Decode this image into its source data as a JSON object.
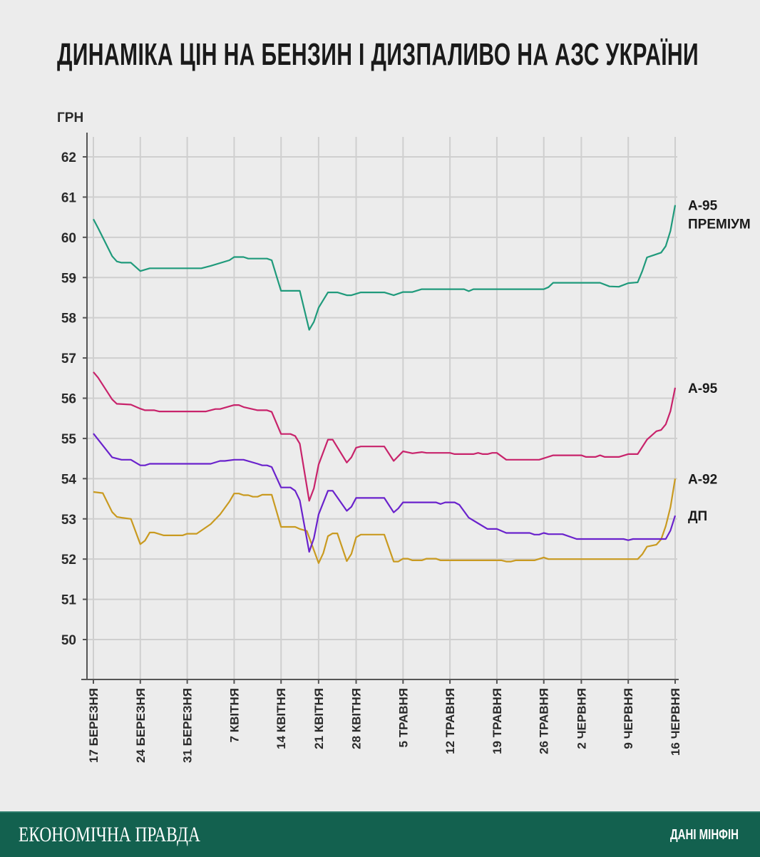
{
  "chart_data": {
    "type": "line",
    "title": "ДИНАМІКА ЦІН НА БЕНЗИН І ДИЗПАЛИВО НА АЗС УКРАЇНИ",
    "ylabel": "ГРН",
    "xlabel": "",
    "ylim": [
      49,
      62.5
    ],
    "yticks": [
      50,
      51,
      52,
      53,
      54,
      55,
      56,
      57,
      58,
      59,
      60,
      61,
      62
    ],
    "xlim": [
      0,
      124
    ],
    "x_unit": "observation index",
    "xticks": [
      {
        "x": 0,
        "label": "17 БЕРЕЗНЯ"
      },
      {
        "x": 10,
        "label": "24 БЕРЕЗНЯ"
      },
      {
        "x": 20,
        "label": "31 БЕРЕЗНЯ"
      },
      {
        "x": 30,
        "label": "7 КВІТНЯ"
      },
      {
        "x": 40,
        "label": "14 КВІТНЯ"
      },
      {
        "x": 48,
        "label": "21 КВІТНЯ"
      },
      {
        "x": 56,
        "label": "28 КВІТНЯ"
      },
      {
        "x": 66,
        "label": "5 ТРАВНЯ"
      },
      {
        "x": 76,
        "label": "12 ТРАВНЯ"
      },
      {
        "x": 86,
        "label": "19 ТРАВНЯ"
      },
      {
        "x": 96,
        "label": "26 ТРАВНЯ"
      },
      {
        "x": 104,
        "label": "2 ЧЕРВНЯ"
      },
      {
        "x": 114,
        "label": "9 ЧЕРВНЯ"
      },
      {
        "x": 124,
        "label": "16 ЧЕРВНЯ"
      }
    ],
    "grid": true,
    "legend": "end-of-line labels, right",
    "series": [
      {
        "name": "А-95 ПРЕМІУМ",
        "label_lines": [
          "А-95",
          "ПРЕМІУМ"
        ],
        "color": "#1f9a7b",
        "points": [
          [
            0,
            60.45
          ],
          [
            1,
            60.23
          ],
          [
            4,
            59.53
          ],
          [
            5,
            59.4
          ],
          [
            6,
            59.37
          ],
          [
            8,
            59.37
          ],
          [
            10,
            59.16
          ],
          [
            12,
            59.23
          ],
          [
            23,
            59.23
          ],
          [
            25,
            59.29
          ],
          [
            29,
            59.43
          ],
          [
            30,
            59.51
          ],
          [
            32,
            59.51
          ],
          [
            33,
            59.47
          ],
          [
            37,
            59.47
          ],
          [
            38,
            59.43
          ],
          [
            39,
            59.05
          ],
          [
            40,
            58.67
          ],
          [
            44,
            58.67
          ],
          [
            46,
            57.7
          ],
          [
            47,
            57.9
          ],
          [
            48,
            58.25
          ],
          [
            50,
            58.63
          ],
          [
            52,
            58.63
          ],
          [
            54,
            58.56
          ],
          [
            55,
            58.56
          ],
          [
            57,
            58.63
          ],
          [
            62,
            58.63
          ],
          [
            64,
            58.56
          ],
          [
            66,
            58.64
          ],
          [
            68,
            58.64
          ],
          [
            70,
            58.71
          ],
          [
            79,
            58.71
          ],
          [
            80,
            58.66
          ],
          [
            81,
            58.71
          ],
          [
            96,
            58.71
          ],
          [
            97,
            58.76
          ],
          [
            98,
            58.87
          ],
          [
            108,
            58.87
          ],
          [
            110,
            58.78
          ],
          [
            112,
            58.77
          ],
          [
            114,
            58.86
          ],
          [
            116,
            58.88
          ],
          [
            117,
            59.16
          ],
          [
            118,
            59.5
          ],
          [
            119.5,
            59.56
          ],
          [
            121,
            59.62
          ],
          [
            122,
            59.78
          ],
          [
            123,
            60.16
          ],
          [
            124,
            60.8
          ]
        ]
      },
      {
        "name": "А-95",
        "label_lines": [
          "А-95"
        ],
        "color": "#c8236b",
        "points": [
          [
            0,
            56.65
          ],
          [
            1,
            56.51
          ],
          [
            4,
            55.97
          ],
          [
            5,
            55.86
          ],
          [
            8,
            55.84
          ],
          [
            10,
            55.74
          ],
          [
            11,
            55.7
          ],
          [
            13,
            55.7
          ],
          [
            14,
            55.67
          ],
          [
            24,
            55.67
          ],
          [
            26,
            55.73
          ],
          [
            27,
            55.73
          ],
          [
            30,
            55.83
          ],
          [
            31,
            55.83
          ],
          [
            32,
            55.78
          ],
          [
            35,
            55.7
          ],
          [
            37,
            55.7
          ],
          [
            38,
            55.66
          ],
          [
            40,
            55.11
          ],
          [
            42,
            55.11
          ],
          [
            43,
            55.06
          ],
          [
            44,
            54.87
          ],
          [
            46,
            53.45
          ],
          [
            47,
            53.76
          ],
          [
            48,
            54.35
          ],
          [
            50,
            54.97
          ],
          [
            51,
            54.97
          ],
          [
            54,
            54.4
          ],
          [
            55,
            54.53
          ],
          [
            56,
            54.77
          ],
          [
            57,
            54.8
          ],
          [
            62,
            54.8
          ],
          [
            64,
            54.44
          ],
          [
            66,
            54.68
          ],
          [
            68,
            54.63
          ],
          [
            70,
            54.66
          ],
          [
            71,
            54.64
          ],
          [
            76,
            54.64
          ],
          [
            77,
            54.61
          ],
          [
            81,
            54.61
          ],
          [
            82,
            54.64
          ],
          [
            83,
            54.61
          ],
          [
            84,
            54.61
          ],
          [
            85,
            54.64
          ],
          [
            86,
            54.64
          ],
          [
            88,
            54.47
          ],
          [
            95,
            54.47
          ],
          [
            98,
            54.58
          ],
          [
            104,
            54.58
          ],
          [
            105,
            54.54
          ],
          [
            107,
            54.54
          ],
          [
            108,
            54.58
          ],
          [
            109,
            54.54
          ],
          [
            112,
            54.54
          ],
          [
            114,
            54.61
          ],
          [
            116,
            54.61
          ],
          [
            118,
            54.97
          ],
          [
            120,
            55.18
          ],
          [
            121,
            55.21
          ],
          [
            122,
            55.35
          ],
          [
            123,
            55.68
          ],
          [
            124,
            56.26
          ]
        ]
      },
      {
        "name": "А-92",
        "label_lines": [
          "А-92"
        ],
        "color": "#c99a20",
        "points": [
          [
            0,
            53.67
          ],
          [
            2,
            53.64
          ],
          [
            4,
            53.17
          ],
          [
            5,
            53.05
          ],
          [
            6,
            53.03
          ],
          [
            8,
            53.0
          ],
          [
            10,
            52.37
          ],
          [
            11,
            52.46
          ],
          [
            12,
            52.66
          ],
          [
            13,
            52.66
          ],
          [
            15,
            52.59
          ],
          [
            19,
            52.59
          ],
          [
            20,
            52.63
          ],
          [
            22,
            52.63
          ],
          [
            23,
            52.71
          ],
          [
            25,
            52.87
          ],
          [
            27,
            53.11
          ],
          [
            29,
            53.43
          ],
          [
            30,
            53.63
          ],
          [
            31,
            53.63
          ],
          [
            32,
            53.59
          ],
          [
            33,
            53.59
          ],
          [
            34,
            53.55
          ],
          [
            35,
            53.55
          ],
          [
            36,
            53.6
          ],
          [
            38,
            53.6
          ],
          [
            40,
            52.8
          ],
          [
            43,
            52.8
          ],
          [
            44,
            52.75
          ],
          [
            45.5,
            52.7
          ],
          [
            48,
            51.9
          ],
          [
            49,
            52.15
          ],
          [
            50,
            52.57
          ],
          [
            51,
            52.64
          ],
          [
            52,
            52.64
          ],
          [
            54,
            51.95
          ],
          [
            55,
            52.13
          ],
          [
            56,
            52.54
          ],
          [
            57,
            52.61
          ],
          [
            62,
            52.61
          ],
          [
            64,
            51.94
          ],
          [
            65,
            51.94
          ],
          [
            66,
            52.01
          ],
          [
            67,
            52.01
          ],
          [
            68,
            51.97
          ],
          [
            70,
            51.97
          ],
          [
            71,
            52.01
          ],
          [
            73,
            52.01
          ],
          [
            74,
            51.97
          ],
          [
            87,
            51.97
          ],
          [
            88,
            51.94
          ],
          [
            89,
            51.94
          ],
          [
            90,
            51.97
          ],
          [
            94,
            51.97
          ],
          [
            96,
            52.04
          ],
          [
            97,
            52.0
          ],
          [
            116,
            52.0
          ],
          [
            117,
            52.12
          ],
          [
            118,
            52.31
          ],
          [
            120,
            52.36
          ],
          [
            121,
            52.49
          ],
          [
            122,
            52.82
          ],
          [
            123,
            53.29
          ],
          [
            124,
            54.0
          ]
        ]
      },
      {
        "name": "ДП",
        "label_lines": [
          "ДП"
        ],
        "color": "#6a22cc",
        "points": [
          [
            0,
            55.12
          ],
          [
            4,
            54.53
          ],
          [
            6,
            54.47
          ],
          [
            8,
            54.47
          ],
          [
            10,
            54.33
          ],
          [
            11,
            54.33
          ],
          [
            12,
            54.37
          ],
          [
            25,
            54.37
          ],
          [
            27,
            54.44
          ],
          [
            28,
            54.44
          ],
          [
            30,
            54.47
          ],
          [
            32,
            54.47
          ],
          [
            35,
            54.37
          ],
          [
            36,
            54.33
          ],
          [
            37,
            54.33
          ],
          [
            38,
            54.29
          ],
          [
            40,
            53.78
          ],
          [
            42,
            53.78
          ],
          [
            43,
            53.7
          ],
          [
            44,
            53.46
          ],
          [
            46,
            52.18
          ],
          [
            47,
            52.52
          ],
          [
            48,
            53.11
          ],
          [
            50,
            53.7
          ],
          [
            51,
            53.7
          ],
          [
            54,
            53.2
          ],
          [
            55,
            53.3
          ],
          [
            56,
            53.52
          ],
          [
            62,
            53.52
          ],
          [
            64,
            53.16
          ],
          [
            65,
            53.26
          ],
          [
            66,
            53.41
          ],
          [
            73,
            53.41
          ],
          [
            74,
            53.37
          ],
          [
            75,
            53.41
          ],
          [
            77,
            53.41
          ],
          [
            78,
            53.35
          ],
          [
            80,
            53.03
          ],
          [
            82,
            52.89
          ],
          [
            84,
            52.75
          ],
          [
            86,
            52.75
          ],
          [
            88,
            52.65
          ],
          [
            93,
            52.65
          ],
          [
            94,
            52.61
          ],
          [
            95,
            52.61
          ],
          [
            96,
            52.65
          ],
          [
            97,
            52.62
          ],
          [
            100,
            52.62
          ],
          [
            103,
            52.5
          ],
          [
            113,
            52.5
          ],
          [
            114,
            52.47
          ],
          [
            115,
            52.5
          ],
          [
            122,
            52.5
          ],
          [
            123,
            52.71
          ],
          [
            124,
            53.08
          ]
        ]
      }
    ]
  },
  "footer": {
    "brand": "ЕКОНОМІЧНА ПРАВДА",
    "source": "ДАНІ МІНФІН",
    "background": "#13614f"
  }
}
